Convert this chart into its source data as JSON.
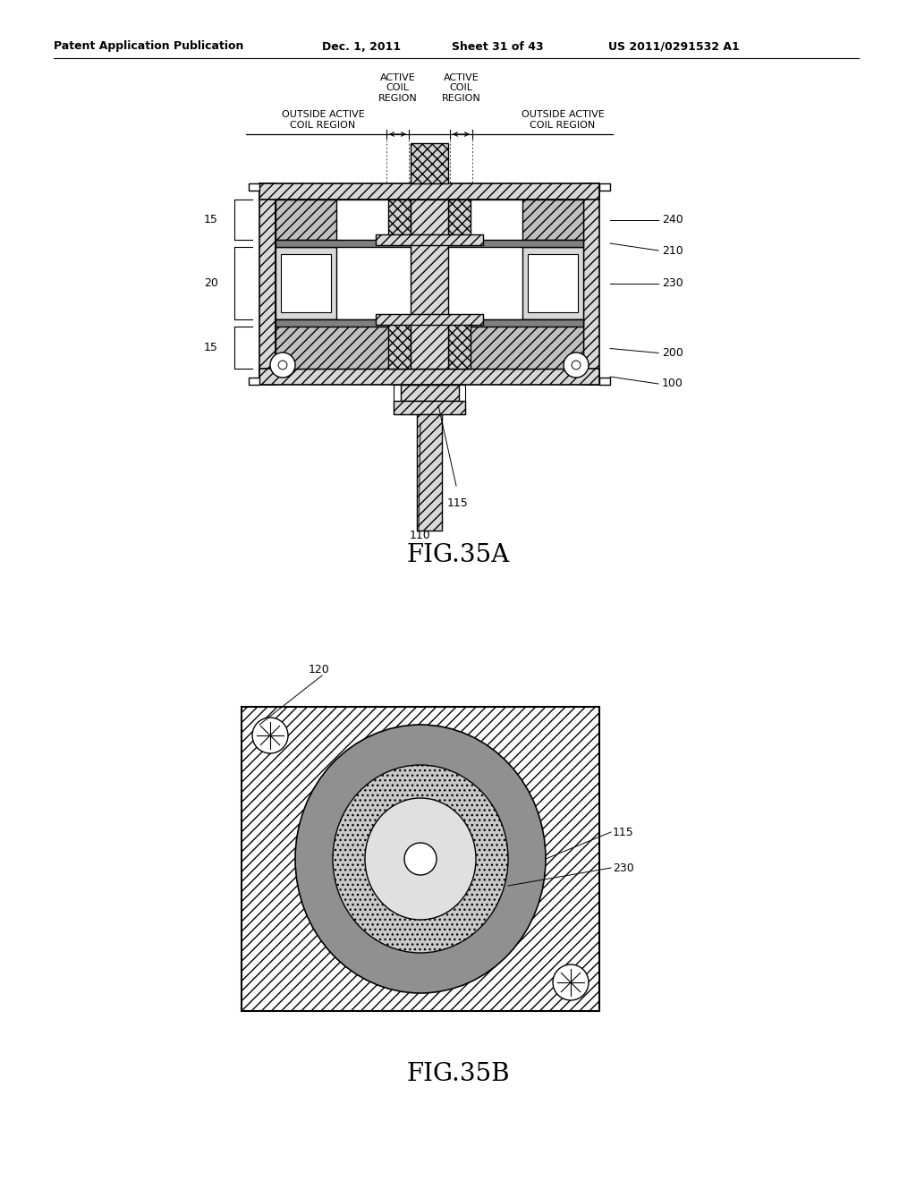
{
  "bg_color": "#ffffff",
  "header_text": "Patent Application Publication",
  "header_date": "Dec. 1, 2011",
  "header_sheet": "Sheet 31 of 43",
  "header_patent": "US 2011/0291532 A1",
  "fig35a_label": "FIG.35A",
  "fig35b_label": "FIG.35B"
}
